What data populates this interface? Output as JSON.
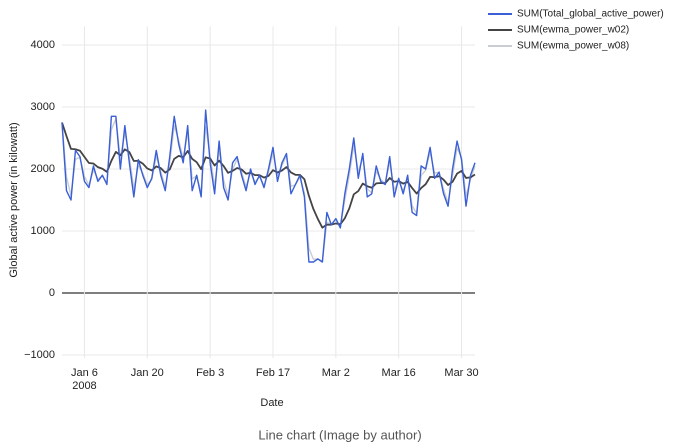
{
  "chart_data": {
    "type": "line",
    "ylabel": "Global active power (in kilowatt)",
    "xlabel": "Date",
    "caption": "Line chart (Image by author)",
    "grid": true,
    "legend": "top-right",
    "xlim": [
      "2008-01-01",
      "2008-04-02"
    ],
    "xticks": [
      {
        "value": "2008-01-06",
        "label": "Jan 6\n2008"
      },
      {
        "value": "2008-01-20",
        "label": "Jan 20"
      },
      {
        "value": "2008-02-03",
        "label": "Feb 3"
      },
      {
        "value": "2008-02-17",
        "label": "Feb 17"
      },
      {
        "value": "2008-03-02",
        "label": "Mar 2"
      },
      {
        "value": "2008-03-16",
        "label": "Mar 16"
      },
      {
        "value": "2008-03-30",
        "label": "Mar 30"
      }
    ],
    "ylim": [
      -1050,
      4300
    ],
    "yticks": [
      {
        "value": -1000,
        "label": "−1000"
      },
      0,
      1000,
      2000,
      3000,
      4000
    ],
    "x": [
      "2008-01-01",
      "2008-01-02",
      "2008-01-03",
      "2008-01-04",
      "2008-01-05",
      "2008-01-06",
      "2008-01-07",
      "2008-01-08",
      "2008-01-09",
      "2008-01-10",
      "2008-01-11",
      "2008-01-12",
      "2008-01-13",
      "2008-01-14",
      "2008-01-15",
      "2008-01-16",
      "2008-01-17",
      "2008-01-18",
      "2008-01-19",
      "2008-01-20",
      "2008-01-21",
      "2008-01-22",
      "2008-01-23",
      "2008-01-24",
      "2008-01-25",
      "2008-01-26",
      "2008-01-27",
      "2008-01-28",
      "2008-01-29",
      "2008-01-30",
      "2008-01-31",
      "2008-02-01",
      "2008-02-02",
      "2008-02-03",
      "2008-02-04",
      "2008-02-05",
      "2008-02-06",
      "2008-02-07",
      "2008-02-08",
      "2008-02-09",
      "2008-02-10",
      "2008-02-11",
      "2008-02-12",
      "2008-02-13",
      "2008-02-14",
      "2008-02-15",
      "2008-02-16",
      "2008-02-17",
      "2008-02-18",
      "2008-02-19",
      "2008-02-20",
      "2008-02-21",
      "2008-02-22",
      "2008-02-23",
      "2008-02-24",
      "2008-02-25",
      "2008-02-26",
      "2008-02-27",
      "2008-02-28",
      "2008-02-29",
      "2008-03-01",
      "2008-03-02",
      "2008-03-03",
      "2008-03-04",
      "2008-03-05",
      "2008-03-06",
      "2008-03-07",
      "2008-03-08",
      "2008-03-09",
      "2008-03-10",
      "2008-03-11",
      "2008-03-12",
      "2008-03-13",
      "2008-03-14",
      "2008-03-15",
      "2008-03-16",
      "2008-03-17",
      "2008-03-18",
      "2008-03-19",
      "2008-03-20",
      "2008-03-21",
      "2008-03-22",
      "2008-03-23",
      "2008-03-24",
      "2008-03-25",
      "2008-03-26",
      "2008-03-27",
      "2008-03-28",
      "2008-03-29",
      "2008-03-30",
      "2008-03-31",
      "2008-04-01",
      "2008-04-02"
    ],
    "series": [
      {
        "name": "SUM(Total_global_active_power)",
        "color": "#3a5fd6",
        "values": [
          2750,
          1650,
          1500,
          2300,
          2200,
          1800,
          1700,
          2050,
          1800,
          1900,
          1750,
          2850,
          2850,
          2000,
          2700,
          2100,
          1550,
          2150,
          1900,
          1700,
          1850,
          2300,
          1900,
          1650,
          2200,
          2850,
          2400,
          2100,
          2700,
          1650,
          1900,
          1550,
          2950,
          2100,
          1600,
          2450,
          1700,
          1500,
          2100,
          2200,
          1900,
          1650,
          2000,
          1750,
          1900,
          1700,
          2000,
          2350,
          1800,
          2100,
          2250,
          1600,
          1750,
          1900,
          1550,
          500,
          500,
          550,
          500,
          1300,
          1100,
          1200,
          1050,
          1600,
          2000,
          2500,
          1850,
          2250,
          1550,
          1600,
          2050,
          1800,
          1750,
          2200,
          1550,
          1850,
          1600,
          1900,
          1300,
          1250,
          2050,
          2000,
          2350,
          1850,
          1950,
          1600,
          1400,
          2000,
          2450,
          2150,
          1400,
          1900,
          2100
        ]
      },
      {
        "name": "SUM(ewma_power_w02)",
        "color": "#444444",
        "values": [
          2750,
          2530,
          2324,
          2319,
          2295,
          2196,
          2097,
          2088,
          2030,
          2004,
          1953,
          2132,
          2276,
          2221,
          2317,
          2274,
          2129,
          2133,
          2086,
          2009,
          1977,
          2042,
          2014,
          1941,
          1993,
          2164,
          2211,
          2189,
          2291,
          2163,
          2110,
          1998,
          2188,
          2170,
          2056,
          2135,
          2048,
          1938,
          1970,
          2016,
          1993,
          1924,
          1939,
          1901,
          1901,
          1861,
          1889,
          1981,
          1945,
          1976,
          2031,
          1945,
          1906,
          1905,
          1834,
          1567,
          1354,
          1193,
          1054,
          1103,
          1102,
          1122,
          1108,
          1206,
          1365,
          1592,
          1644,
          1765,
          1722,
          1698,
          1768,
          1774,
          1769,
          1855,
          1794,
          1805,
          1764,
          1791,
          1693,
          1604,
          1693,
          1754,
          1873,
          1868,
          1884,
          1827,
          1742,
          1794,
          1925,
          1970,
          1856,
          1865,
          1912
        ]
      },
      {
        "name": "SUM(ewma_power_w08)",
        "color": "#c9cdd2",
        "values": [
          2750,
          1870,
          1574,
          2155,
          2191,
          1878,
          1736,
          1987,
          1837,
          1887,
          1777,
          2635,
          2807,
          2161,
          2592,
          2198,
          1680,
          2056,
          1931,
          1746,
          1829,
          2206,
          1961,
          1712,
          2102,
          2700,
          2460,
          2172,
          2594,
          1839,
          1888,
          1618,
          2684,
          2217,
          1723,
          2305,
          1821,
          1564,
          1993,
          2159,
          1952,
          1710,
          1942,
          1788,
          1878,
          1736,
          1947,
          2269,
          1894,
          2059,
          2212,
          1722,
          1744,
          1869,
          1614,
          723,
          545,
          549,
          510,
          1142,
          1108,
          1182,
          1076,
          1495,
          1899,
          2380,
          1956,
          2191,
          1678,
          1616,
          1963,
          1833,
          1767,
          2113,
          1663,
          1813,
          1643,
          1849,
          1410,
          1282,
          1896,
          1979,
          2276,
          1935,
          1947,
          1669,
          1454,
          1891,
          2338,
          2188,
          1558,
          1832,
          2046
        ]
      }
    ]
  }
}
